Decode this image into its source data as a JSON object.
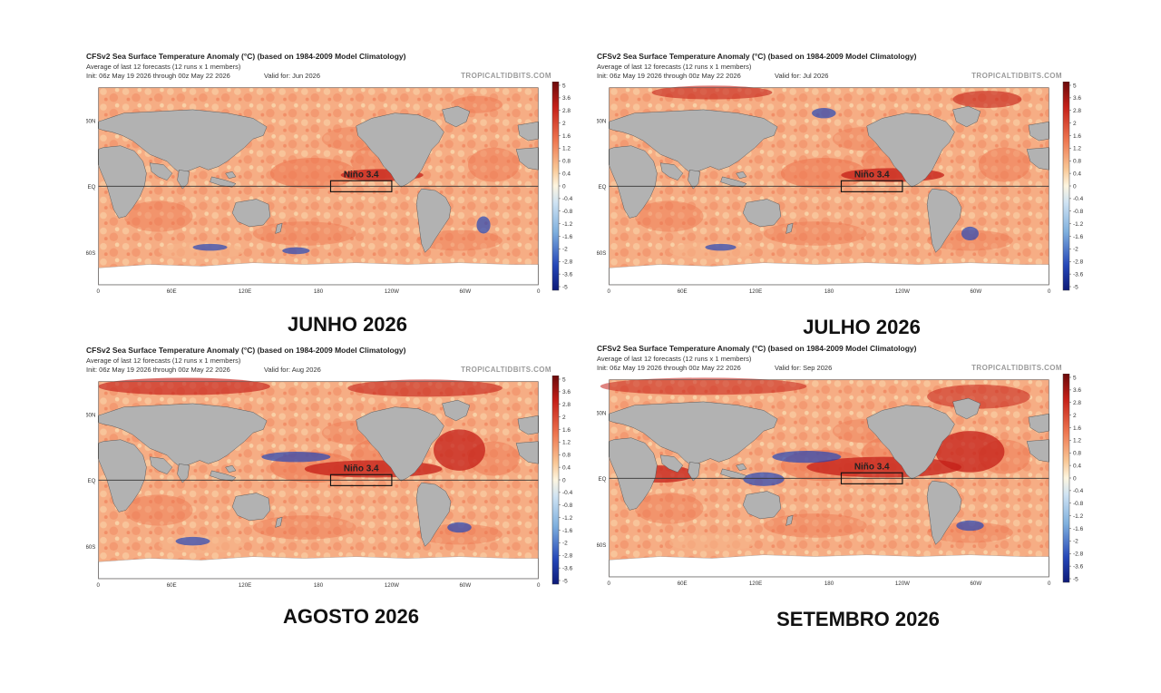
{
  "chart_title": "CFSv2 Sea Surface Temperature Anomaly (°C) (based on 1984-2009 Model Climatology)",
  "subtitle": "Average of last 12 forecasts (12 runs x 1 members)",
  "init_text": "Init: 06z May 19 2026 through 00z May 22 2026",
  "credit": "TROPICALTIDBITS.COM",
  "region_label": "Niño 3.4",
  "lat_labels": [
    "60N",
    "EQ",
    "60S"
  ],
  "lon_labels": [
    "0",
    "60E",
    "120E",
    "180",
    "120W",
    "60W",
    "0"
  ],
  "colorbar_ticks": [
    "5",
    "3.6",
    "2.8",
    "2",
    "1.6",
    "1.2",
    "0.8",
    "0.4",
    "0",
    "-0.4",
    "-0.8",
    "-1.2",
    "-1.6",
    "-2",
    "-2.8",
    "-3.6",
    "-5"
  ],
  "colors": {
    "land": "#b2b2b2",
    "ice": "#ffffff",
    "warm_strong": "#c41f18",
    "warm": "#ee7650",
    "warm_light": "#f7b488",
    "neutral": "#fbe6b8",
    "cool": "#a9cdea",
    "cool_strong": "#2547b8"
  },
  "panels": [
    {
      "valid": "Valid for: Jun 2026",
      "month_label": "JUNHO 2026"
    },
    {
      "valid": "Valid for: Jul 2026",
      "month_label": "JULHO 2026"
    },
    {
      "valid": "Valid for: Aug 2026",
      "month_label": "AGOSTO 2026"
    },
    {
      "valid": "Valid for: Sep 2026",
      "month_label": "SETEMBRO 2026"
    }
  ]
}
